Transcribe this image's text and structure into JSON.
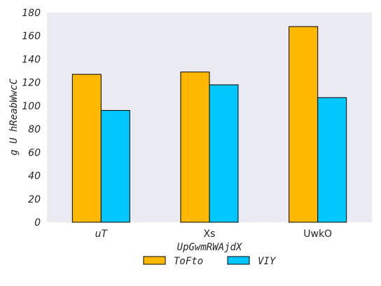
{
  "chart_data": {
    "type": "bar",
    "categories": [
      "uT",
      "Xs",
      "UwkO"
    ],
    "category_italic": [
      true,
      false,
      false
    ],
    "series": [
      {
        "name": "ToFto",
        "values": [
          127,
          129,
          168
        ],
        "color": "#FFB800"
      },
      {
        "name": "VIY",
        "values": [
          96,
          118,
          107
        ],
        "color": "#00C8FF"
      }
    ],
    "xlabel": "UpGwmRWAjdX",
    "ylabel": "g U hReabWwcC",
    "ylim": [
      0,
      180
    ],
    "yticks": [
      0,
      20,
      40,
      60,
      80,
      100,
      120,
      140,
      160,
      180
    ],
    "grid": false,
    "legend_position": "bottom-center",
    "plot_background": "#EAEAF2",
    "bar_edge_color": "#000000"
  }
}
